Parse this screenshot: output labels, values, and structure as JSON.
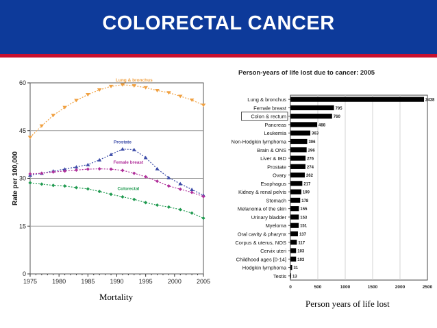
{
  "slide": {
    "title": "COLORECTAL CANCER",
    "left_caption": "Mortality",
    "right_caption": "Person years of life lost"
  },
  "colors": {
    "header_bg": "#0d3a9a",
    "accent_stripe": "#c8102e",
    "lung": "#f0a040",
    "prostate": "#3c4ca8",
    "female_breast": "#b0309a",
    "colorectal": "#209a50",
    "bar": "#000000"
  },
  "chart_data": [
    {
      "type": "line",
      "ylabel": "Rate per 100,000",
      "xlabel": "",
      "x_ticks": [
        "1975",
        "1980",
        "1985",
        "1990",
        "1995",
        "2000",
        "2005"
      ],
      "y_ticks": [
        "0",
        "15",
        "30",
        "45",
        "60"
      ],
      "xlim": [
        1975,
        2005
      ],
      "ylim": [
        0,
        60
      ],
      "grid": "horizontal",
      "series": [
        {
          "name": "Lung & bronchus",
          "color_key": "lung",
          "marker": "triangle-down",
          "x": [
            1975,
            1977,
            1979,
            1981,
            1983,
            1985,
            1987,
            1989,
            1991,
            1993,
            1995,
            1997,
            1999,
            2001,
            2003,
            2005
          ],
          "y": [
            42.9,
            46.5,
            49.8,
            52.3,
            54.5,
            56.3,
            57.8,
            58.9,
            59.4,
            59.1,
            58.5,
            57.6,
            56.9,
            55.8,
            54.6,
            53.0
          ]
        },
        {
          "name": "Prostate",
          "color_key": "prostate",
          "marker": "triangle-up",
          "x": [
            1975,
            1977,
            1979,
            1981,
            1983,
            1985,
            1987,
            1989,
            1991,
            1993,
            1995,
            1997,
            1999,
            2001,
            2003,
            2005
          ],
          "y": [
            31.0,
            31.6,
            32.3,
            32.9,
            33.6,
            34.3,
            35.8,
            37.5,
            39.2,
            39.0,
            36.5,
            33.0,
            30.2,
            28.3,
            26.5,
            24.7
          ]
        },
        {
          "name": "Female breast",
          "color_key": "female_breast",
          "marker": "diamond",
          "x": [
            1975,
            1977,
            1979,
            1981,
            1983,
            1985,
            1987,
            1989,
            1991,
            1993,
            1995,
            1997,
            1999,
            2001,
            2003,
            2005
          ],
          "y": [
            31.4,
            31.6,
            32.0,
            32.3,
            32.6,
            32.9,
            33.0,
            32.9,
            32.5,
            31.6,
            30.5,
            29.1,
            27.6,
            26.6,
            25.6,
            24.3
          ]
        },
        {
          "name": "Colorectal",
          "color_key": "colorectal",
          "marker": "diamond",
          "x": [
            1975,
            1977,
            1979,
            1981,
            1983,
            1985,
            1987,
            1989,
            1991,
            1993,
            1995,
            1997,
            1999,
            2001,
            2003,
            2005
          ],
          "y": [
            28.6,
            28.2,
            27.8,
            27.6,
            27.1,
            26.7,
            25.9,
            25.0,
            24.2,
            23.4,
            22.4,
            21.6,
            21.0,
            20.2,
            19.1,
            17.5
          ]
        }
      ]
    },
    {
      "type": "bar",
      "orientation": "horizontal",
      "title": "Person-years of life lost due to cancer: 2005",
      "highlighted_category": "Colon & rectum",
      "x_ticks": [
        "0",
        "500",
        "1000",
        "1500",
        "2000",
        "2500"
      ],
      "xlim": [
        0,
        2500
      ],
      "categories": [
        "Lung & bronchus",
        "Female breast",
        "Colon & rectum",
        "Pancreas",
        "Leukemia",
        "Non-Hodgkin lymphoma",
        "Brain & ONS",
        "Liver & IBD",
        "Prostate",
        "Ovary",
        "Esophagus",
        "Kidney & renal pelvis",
        "Stomach",
        "Melanoma of the skin",
        "Urinary bladder",
        "Myeloma",
        "Oral cavity & pharynx",
        "Corpus & uterus, NOS",
        "Cervix uteri",
        "Childhood ages [0-14]",
        "Hodgkin lymphoma",
        "Testis"
      ],
      "values": [
        2438,
        795,
        760,
        488,
        363,
        306,
        296,
        276,
        274,
        262,
        217,
        199,
        178,
        155,
        153,
        151,
        137,
        117,
        103,
        103,
        31,
        13
      ],
      "value_labels": [
        "2438",
        "795",
        "760",
        "488",
        "363",
        "306",
        "296",
        "276",
        "274",
        "262",
        "217",
        "199",
        "178",
        "155",
        "153",
        "151",
        "137",
        "117",
        "103",
        "103",
        "31",
        "13"
      ]
    }
  ]
}
